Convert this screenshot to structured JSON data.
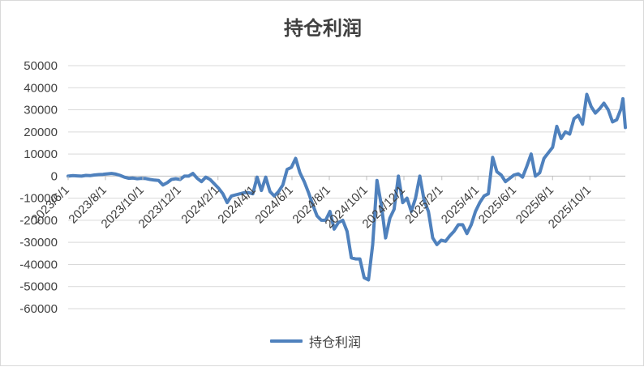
{
  "chart_data": {
    "type": "line",
    "title": "持仓利润",
    "xlabel": "",
    "ylabel": "",
    "ylim": [
      -60000,
      50000
    ],
    "yticks": [
      50000,
      40000,
      30000,
      20000,
      10000,
      0,
      -10000,
      -20000,
      -30000,
      -40000,
      -50000,
      -60000
    ],
    "x_tick_labels": [
      "2023/6/1",
      "2023/8/1",
      "2023/10/1",
      "2023/12/1",
      "2024/2/1",
      "2024/4/1",
      "2024/6/1",
      "2024/8/1",
      "2024/10/1",
      "2024/12/1",
      "2025/2/1",
      "2025/4/1",
      "2025/6/1",
      "2025/8/1",
      "2025/10/1"
    ],
    "x_tick_dates": [
      "2023-06-01",
      "2023-08-01",
      "2023-10-01",
      "2023-12-01",
      "2024-02-01",
      "2024-04-01",
      "2024-06-01",
      "2024-08-01",
      "2024-10-01",
      "2024-12-01",
      "2025-02-01",
      "2025-04-01",
      "2025-06-01",
      "2025-08-01",
      "2025-10-01"
    ],
    "x_range": [
      "2023-06-01",
      "2025-11-28"
    ],
    "legend": {
      "position": "bottom"
    },
    "grid": {
      "horizontal": true,
      "vertical": false
    },
    "colors": {
      "series": "#4f81bd",
      "grid": "#d9d9d9",
      "axis": "#bfbfbf",
      "text": "#404040"
    },
    "series": [
      {
        "name": "持仓利润",
        "points": [
          [
            "2023-06-01",
            0
          ],
          [
            "2023-06-09",
            200
          ],
          [
            "2023-06-16",
            100
          ],
          [
            "2023-06-23",
            0
          ],
          [
            "2023-06-30",
            300
          ],
          [
            "2023-07-07",
            200
          ],
          [
            "2023-07-14",
            500
          ],
          [
            "2023-07-21",
            700
          ],
          [
            "2023-07-28",
            800
          ],
          [
            "2023-08-04",
            1000
          ],
          [
            "2023-08-11",
            1200
          ],
          [
            "2023-08-18",
            900
          ],
          [
            "2023-08-25",
            300
          ],
          [
            "2023-09-01",
            -500
          ],
          [
            "2023-09-08",
            -1000
          ],
          [
            "2023-09-15",
            -900
          ],
          [
            "2023-09-22",
            -1200
          ],
          [
            "2023-09-29",
            -1000
          ],
          [
            "2023-10-06",
            -1100
          ],
          [
            "2023-10-13",
            -1500
          ],
          [
            "2023-10-20",
            -1800
          ],
          [
            "2023-10-27",
            -2000
          ],
          [
            "2023-11-03",
            -4000
          ],
          [
            "2023-11-10",
            -3000
          ],
          [
            "2023-11-17",
            -1500
          ],
          [
            "2023-11-24",
            -1200
          ],
          [
            "2023-12-01",
            -1500
          ],
          [
            "2023-12-08",
            0
          ],
          [
            "2023-12-15",
            0
          ],
          [
            "2023-12-22",
            1200
          ],
          [
            "2023-12-29",
            -1000
          ],
          [
            "2024-01-05",
            -2500
          ],
          [
            "2024-01-12",
            -500
          ],
          [
            "2024-01-19",
            -1500
          ],
          [
            "2024-01-26",
            -3500
          ],
          [
            "2024-02-02",
            -5500
          ],
          [
            "2024-02-09",
            -8000
          ],
          [
            "2024-02-16",
            -12000
          ],
          [
            "2024-02-23",
            -9000
          ],
          [
            "2024-03-01",
            -8500
          ],
          [
            "2024-03-08",
            -8000
          ],
          [
            "2024-03-15",
            -7500
          ],
          [
            "2024-03-22",
            -7500
          ],
          [
            "2024-03-29",
            -8000
          ],
          [
            "2024-04-05",
            -500
          ],
          [
            "2024-04-12",
            -6500
          ],
          [
            "2024-04-19",
            -500
          ],
          [
            "2024-04-26",
            -7000
          ],
          [
            "2024-05-03",
            -9000
          ],
          [
            "2024-05-10",
            -7000
          ],
          [
            "2024-05-17",
            -4000
          ],
          [
            "2024-05-24",
            3000
          ],
          [
            "2024-05-31",
            4000
          ],
          [
            "2024-06-07",
            8000
          ],
          [
            "2024-06-14",
            1500
          ],
          [
            "2024-06-21",
            -2500
          ],
          [
            "2024-06-28",
            -7500
          ],
          [
            "2024-07-05",
            -13000
          ],
          [
            "2024-07-12",
            -18000
          ],
          [
            "2024-07-19",
            -20000
          ],
          [
            "2024-07-26",
            -20000
          ],
          [
            "2024-08-02",
            -16000
          ],
          [
            "2024-08-09",
            -24000
          ],
          [
            "2024-08-16",
            -21000
          ],
          [
            "2024-08-23",
            -20000
          ],
          [
            "2024-08-30",
            -25000
          ],
          [
            "2024-09-06",
            -37000
          ],
          [
            "2024-09-13",
            -37500
          ],
          [
            "2024-09-20",
            -37500
          ],
          [
            "2024-09-27",
            -46000
          ],
          [
            "2024-10-04",
            -47000
          ],
          [
            "2024-10-11",
            -31000
          ],
          [
            "2024-10-18",
            -2000
          ],
          [
            "2024-10-25",
            -13000
          ],
          [
            "2024-11-01",
            -28000
          ],
          [
            "2024-11-08",
            -19000
          ],
          [
            "2024-11-15",
            -15000
          ],
          [
            "2024-11-22",
            0
          ],
          [
            "2024-11-29",
            -12000
          ],
          [
            "2024-12-06",
            -10000
          ],
          [
            "2024-12-13",
            -16000
          ],
          [
            "2024-12-20",
            -10000
          ],
          [
            "2024-12-27",
            0
          ],
          [
            "2025-01-03",
            -11000
          ],
          [
            "2025-01-10",
            -16000
          ],
          [
            "2025-01-17",
            -28000
          ],
          [
            "2025-01-24",
            -31000
          ],
          [
            "2025-01-31",
            -29000
          ],
          [
            "2025-02-07",
            -29500
          ],
          [
            "2025-02-14",
            -27000
          ],
          [
            "2025-02-21",
            -25000
          ],
          [
            "2025-02-28",
            -22000
          ],
          [
            "2025-03-07",
            -22000
          ],
          [
            "2025-03-14",
            -26000
          ],
          [
            "2025-03-21",
            -22000
          ],
          [
            "2025-03-28",
            -16000
          ],
          [
            "2025-04-04",
            -12000
          ],
          [
            "2025-04-11",
            -9000
          ],
          [
            "2025-04-18",
            -8000
          ],
          [
            "2025-04-25",
            8500
          ],
          [
            "2025-05-02",
            2000
          ],
          [
            "2025-05-09",
            500
          ],
          [
            "2025-05-16",
            -2500
          ],
          [
            "2025-05-23",
            -1000
          ],
          [
            "2025-05-30",
            500
          ],
          [
            "2025-06-06",
            1000
          ],
          [
            "2025-06-13",
            -500
          ],
          [
            "2025-06-20",
            4500
          ],
          [
            "2025-06-27",
            10000
          ],
          [
            "2025-07-04",
            0
          ],
          [
            "2025-07-11",
            1500
          ],
          [
            "2025-07-18",
            8000
          ],
          [
            "2025-07-25",
            10500
          ],
          [
            "2025-08-01",
            13000
          ],
          [
            "2025-08-08",
            22500
          ],
          [
            "2025-08-15",
            17000
          ],
          [
            "2025-08-22",
            20000
          ],
          [
            "2025-08-29",
            19000
          ],
          [
            "2025-09-05",
            26000
          ],
          [
            "2025-09-12",
            27500
          ],
          [
            "2025-09-19",
            23500
          ],
          [
            "2025-09-26",
            37000
          ],
          [
            "2025-10-03",
            31500
          ],
          [
            "2025-10-10",
            28500
          ],
          [
            "2025-10-17",
            30500
          ],
          [
            "2025-10-24",
            33000
          ],
          [
            "2025-10-31",
            30000
          ],
          [
            "2025-11-07",
            24500
          ],
          [
            "2025-11-14",
            25500
          ],
          [
            "2025-11-21",
            30500
          ],
          [
            "2025-11-24",
            35000
          ],
          [
            "2025-11-28",
            22000
          ]
        ]
      }
    ]
  }
}
